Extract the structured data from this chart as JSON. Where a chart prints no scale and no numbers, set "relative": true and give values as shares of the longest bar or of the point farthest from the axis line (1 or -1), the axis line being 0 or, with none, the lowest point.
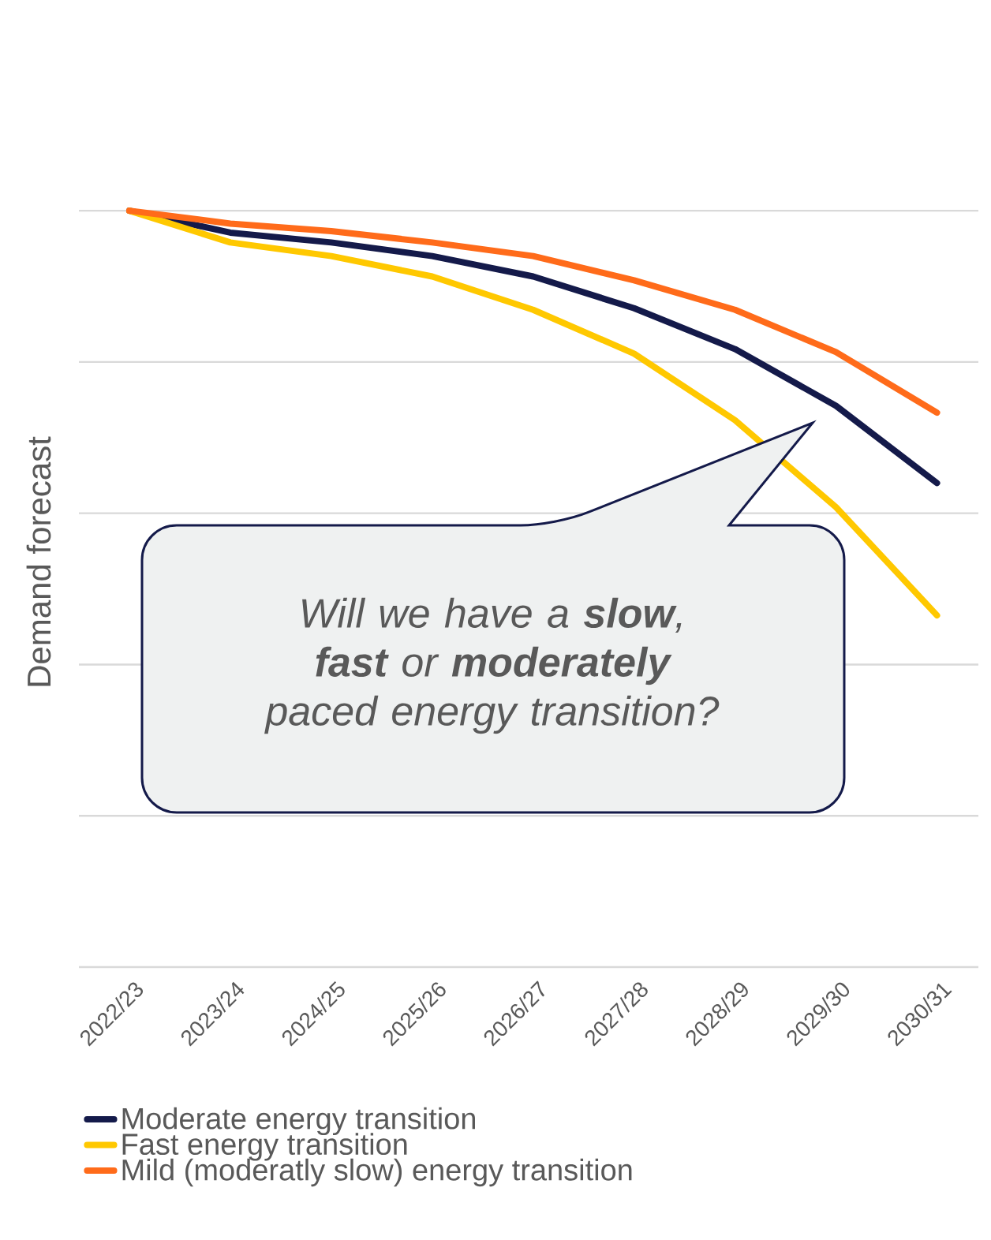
{
  "chart_data": {
    "type": "line",
    "relative": true,
    "ylabel": "Demand forecast",
    "categories": [
      "2022/23",
      "2023/24",
      "2024/25",
      "2025/26",
      "2026/27",
      "2027/28",
      "2028/29",
      "2029/30",
      "2030/31"
    ],
    "series": [
      {
        "name": "Moderate energy transition",
        "color": "#141a4a",
        "values": [
          1,
          0.971,
          0.958,
          0.94,
          0.913,
          0.871,
          0.817,
          0.742,
          0.64
        ]
      },
      {
        "name": "Fast energy transition",
        "color": "#ffc800",
        "values": [
          1,
          0.958,
          0.94,
          0.913,
          0.869,
          0.811,
          0.723,
          0.608,
          0.465
        ]
      },
      {
        "name": "Mild (moderatly slow) energy transition",
        "color": "#ff6b1a",
        "values": [
          1,
          0.983,
          0.973,
          0.958,
          0.94,
          0.908,
          0.869,
          0.813,
          0.733
        ]
      }
    ],
    "annotations": [
      "Will we have a **slow**, **fast** or **moderately** paced energy transition?"
    ],
    "grid": "y",
    "legend": "bottom"
  }
}
